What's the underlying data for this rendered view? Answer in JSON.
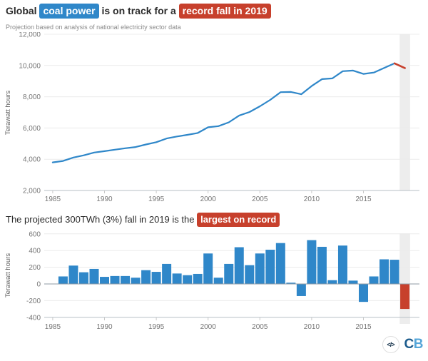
{
  "header": {
    "title_parts": {
      "prefix": "Global",
      "highlight_blue": "coal power",
      "middle": "is on track for a",
      "highlight_red": "record fall in 2019"
    },
    "subtitle": "Projection based on analysis of national electricity sector data"
  },
  "section2_title": {
    "prefix": "The projected 300TWh (3%) fall in 2019 is the",
    "highlight_red": "largest on record"
  },
  "footer": {
    "embed_icon": "</>",
    "logo_c": "C",
    "logo_b": "B"
  },
  "colors": {
    "blue": "#2f87c9",
    "red": "#c7402c",
    "band": "#ededed",
    "grid": "#ececec",
    "axis_line": "#b7bfc6",
    "zero_line": "#8f9aa3",
    "tick_text": "#757575"
  },
  "chart_data": [
    {
      "type": "line",
      "title": "Global coal power generation",
      "ylabel": "Terawatt hours",
      "x": [
        1985,
        1986,
        1987,
        1988,
        1989,
        1990,
        1991,
        1992,
        1993,
        1994,
        1995,
        1996,
        1997,
        1998,
        1999,
        2000,
        2001,
        2002,
        2003,
        2004,
        2005,
        2006,
        2007,
        2008,
        2009,
        2010,
        2011,
        2012,
        2013,
        2014,
        2015,
        2016,
        2017,
        2018,
        2019
      ],
      "values": [
        3800,
        3890,
        4110,
        4250,
        4430,
        4515,
        4610,
        4705,
        4780,
        4945,
        5090,
        5330,
        5455,
        5560,
        5680,
        6045,
        6120,
        6360,
        6800,
        7025,
        7390,
        7800,
        8290,
        8305,
        8160,
        8685,
        9130,
        9175,
        9635,
        9675,
        9460,
        9550,
        9845,
        10135,
        9835
      ],
      "ylim": [
        2000,
        12000
      ],
      "yticks": [
        12000,
        10000,
        8000,
        6000,
        4000,
        2000
      ],
      "xticks": [
        1985,
        1990,
        1995,
        2000,
        2005,
        2010,
        2015
      ],
      "grid": true,
      "highlight_band_year": 2019,
      "red_segment_from_year": 2018
    },
    {
      "type": "bar",
      "title": "Year-on-year change in global coal power generation",
      "ylabel": "Terawatt hours",
      "x": [
        1986,
        1987,
        1988,
        1989,
        1990,
        1991,
        1992,
        1993,
        1994,
        1995,
        1996,
        1997,
        1998,
        1999,
        2000,
        2001,
        2002,
        2003,
        2004,
        2005,
        2006,
        2007,
        2008,
        2009,
        2010,
        2011,
        2012,
        2013,
        2014,
        2015,
        2016,
        2017,
        2018,
        2019
      ],
      "values": [
        90,
        220,
        140,
        180,
        85,
        95,
        95,
        75,
        165,
        145,
        240,
        125,
        105,
        120,
        365,
        75,
        240,
        440,
        225,
        365,
        410,
        490,
        15,
        -145,
        525,
        445,
        45,
        460,
        40,
        -215,
        90,
        295,
        290,
        -300
      ],
      "ylim": [
        -400,
        600
      ],
      "yticks": [
        600,
        400,
        200,
        0,
        -200,
        -400
      ],
      "xticks": [
        1985,
        1990,
        1995,
        2000,
        2005,
        2010,
        2015
      ],
      "grid": true,
      "highlight_band_year": 2019,
      "red_bar_years": [
        2019
      ]
    }
  ]
}
